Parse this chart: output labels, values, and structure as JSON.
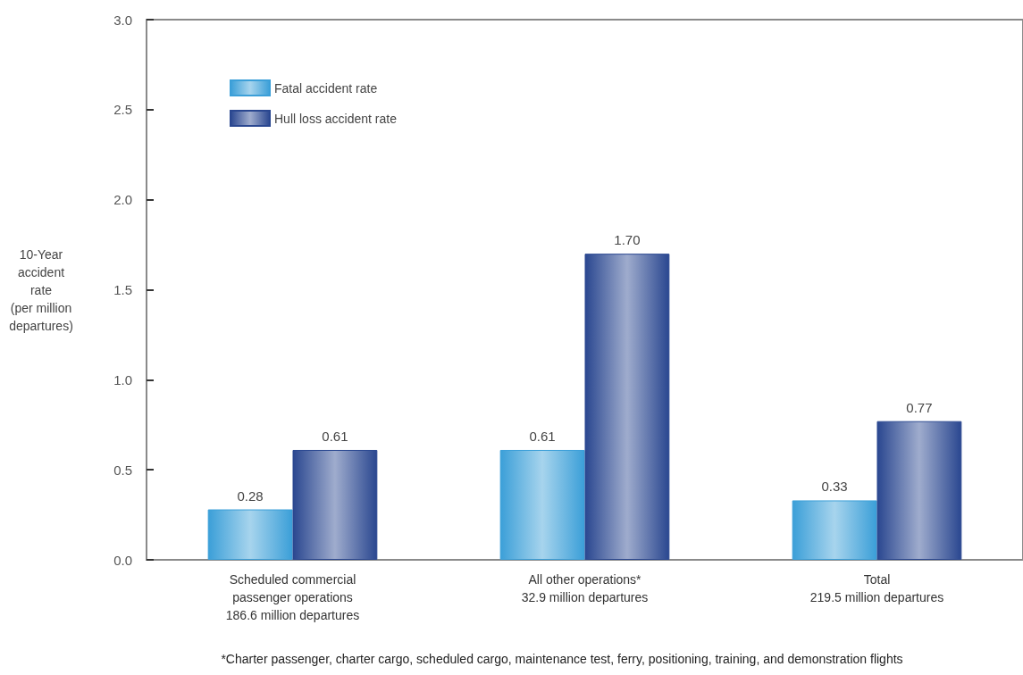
{
  "chart_data": {
    "type": "bar",
    "ylabel": "10-Year\naccident\nrate\n(per million\ndepartures)",
    "categories": [
      "Scheduled commercial\npassenger operations\n186.6 million departures",
      "All other operations*\n32.9 million departures",
      "Total\n219.5 million departures"
    ],
    "series": [
      {
        "name": "Fatal accident rate",
        "color": "#3b9fd8",
        "values": [
          0.28,
          0.61,
          0.33
        ],
        "value_labels": [
          "0.28",
          "0.61",
          "0.33"
        ]
      },
      {
        "name": "Hull loss accident rate",
        "color": "#2a4790",
        "values": [
          0.61,
          1.7,
          0.77
        ],
        "value_labels": [
          "0.61",
          "1.70",
          "0.77"
        ]
      }
    ],
    "ylim": [
      0,
      3
    ],
    "yticks": [
      {
        "value": 0,
        "label": "0.0"
      },
      {
        "value": 0.5,
        "label": "0.5"
      },
      {
        "value": 1,
        "label": "1.0"
      },
      {
        "value": 1.5,
        "label": "1.5"
      },
      {
        "value": 2,
        "label": "2.0"
      },
      {
        "value": 2.5,
        "label": "2.5"
      },
      {
        "value": 3,
        "label": "3.0"
      }
    ],
    "grid": false,
    "legend": "top left",
    "annotations": [
      "*Charter passenger, charter cargo, scheduled cargo, maintenance test, ferry, positioning, training, and demonstration flights"
    ]
  }
}
